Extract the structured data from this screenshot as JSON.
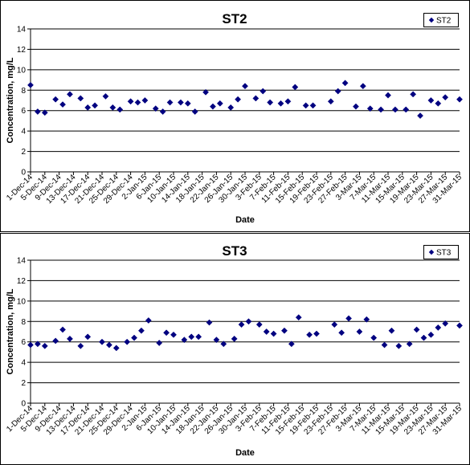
{
  "chart_data": [
    {
      "type": "scatter",
      "title": "ST2",
      "xlabel": "Date",
      "ylabel": "Concentration, mg/L",
      "ylim": [
        0,
        14
      ],
      "yticks": [
        0,
        2,
        4,
        6,
        8,
        10,
        12,
        14
      ],
      "xlim": [
        "2014-12-01",
        "2015-03-31"
      ],
      "xticks": [
        "1-Dec-14",
        "5-Dec-14",
        "9-Dec-14",
        "13-Dec-14",
        "17-Dec-14",
        "21-Dec-14",
        "25-Dec-14",
        "29-Dec-14",
        "2-Jan-15",
        "6-Jan-15",
        "10-Jan-15",
        "14-Jan-15",
        "18-Jan-15",
        "22-Jan-15",
        "26-Jan-15",
        "30-Jan-15",
        "3-Feb-15",
        "7-Feb-15",
        "11-Feb-15",
        "15-Feb-15",
        "19-Feb-15",
        "23-Feb-15",
        "27-Feb-15",
        "3-Mar-15",
        "7-Mar-15",
        "11-Mar-15",
        "15-Mar-15",
        "19-Mar-15",
        "23-Mar-15",
        "27-Mar-15",
        "31-Mar-15"
      ],
      "grid": "horizontal",
      "legend": "top-right",
      "series": [
        {
          "name": "ST2",
          "color": "#000080",
          "marker": "diamond",
          "points": [
            {
              "x": "2014-12-01",
              "y": 8.5
            },
            {
              "x": "2014-12-03",
              "y": 5.9
            },
            {
              "x": "2014-12-05",
              "y": 5.8
            },
            {
              "x": "2014-12-08",
              "y": 7.1
            },
            {
              "x": "2014-12-10",
              "y": 6.6
            },
            {
              "x": "2014-12-12",
              "y": 7.6
            },
            {
              "x": "2014-12-15",
              "y": 7.2
            },
            {
              "x": "2014-12-17",
              "y": 6.3
            },
            {
              "x": "2014-12-19",
              "y": 6.5
            },
            {
              "x": "2014-12-22",
              "y": 7.4
            },
            {
              "x": "2014-12-24",
              "y": 6.3
            },
            {
              "x": "2014-12-26",
              "y": 6.1
            },
            {
              "x": "2014-12-29",
              "y": 6.9
            },
            {
              "x": "2014-12-31",
              "y": 6.8
            },
            {
              "x": "2015-01-02",
              "y": 7.0
            },
            {
              "x": "2015-01-05",
              "y": 6.2
            },
            {
              "x": "2015-01-07",
              "y": 5.9
            },
            {
              "x": "2015-01-09",
              "y": 6.8
            },
            {
              "x": "2015-01-12",
              "y": 6.8
            },
            {
              "x": "2015-01-14",
              "y": 6.7
            },
            {
              "x": "2015-01-16",
              "y": 5.9
            },
            {
              "x": "2015-01-19",
              "y": 7.8
            },
            {
              "x": "2015-01-21",
              "y": 6.4
            },
            {
              "x": "2015-01-23",
              "y": 6.7
            },
            {
              "x": "2015-01-26",
              "y": 6.3
            },
            {
              "x": "2015-01-28",
              "y": 7.1
            },
            {
              "x": "2015-01-30",
              "y": 8.4
            },
            {
              "x": "2015-02-02",
              "y": 7.2
            },
            {
              "x": "2015-02-04",
              "y": 7.9
            },
            {
              "x": "2015-02-06",
              "y": 6.8
            },
            {
              "x": "2015-02-09",
              "y": 6.7
            },
            {
              "x": "2015-02-11",
              "y": 6.9
            },
            {
              "x": "2015-02-13",
              "y": 8.3
            },
            {
              "x": "2015-02-16",
              "y": 6.5
            },
            {
              "x": "2015-02-18",
              "y": 6.5
            },
            {
              "x": "2015-02-23",
              "y": 6.9
            },
            {
              "x": "2015-02-25",
              "y": 7.9
            },
            {
              "x": "2015-02-27",
              "y": 8.7
            },
            {
              "x": "2015-03-02",
              "y": 6.4
            },
            {
              "x": "2015-03-04",
              "y": 8.4
            },
            {
              "x": "2015-03-06",
              "y": 6.2
            },
            {
              "x": "2015-03-09",
              "y": 6.1
            },
            {
              "x": "2015-03-11",
              "y": 7.5
            },
            {
              "x": "2015-03-13",
              "y": 6.1
            },
            {
              "x": "2015-03-16",
              "y": 6.1
            },
            {
              "x": "2015-03-18",
              "y": 7.6
            },
            {
              "x": "2015-03-20",
              "y": 5.5
            },
            {
              "x": "2015-03-23",
              "y": 7.0
            },
            {
              "x": "2015-03-25",
              "y": 6.7
            },
            {
              "x": "2015-03-27",
              "y": 7.3
            },
            {
              "x": "2015-03-31",
              "y": 7.1
            }
          ]
        }
      ]
    },
    {
      "type": "scatter",
      "title": "ST3",
      "xlabel": "Date",
      "ylabel": "Concentration, mg/L",
      "ylim": [
        0,
        14
      ],
      "yticks": [
        0,
        2,
        4,
        6,
        8,
        10,
        12,
        14
      ],
      "xlim": [
        "2014-12-01",
        "2015-03-31"
      ],
      "xticks": [
        "1-Dec-14",
        "5-Dec-14",
        "9-Dec-14",
        "13-Dec-14",
        "17-Dec-14",
        "21-Dec-14",
        "25-Dec-14",
        "29-Dec-14",
        "2-Jan-15",
        "6-Jan-15",
        "10-Jan-15",
        "14-Jan-15",
        "18-Jan-15",
        "22-Jan-15",
        "26-Jan-15",
        "30-Jan-15",
        "3-Feb-15",
        "7-Feb-15",
        "11-Feb-15",
        "15-Feb-15",
        "19-Feb-15",
        "23-Feb-15",
        "27-Feb-15",
        "3-Mar-15",
        "7-Mar-15",
        "11-Mar-15",
        "15-Mar-15",
        "19-Mar-15",
        "23-Mar-15",
        "27-Mar-15",
        "31-Mar-15"
      ],
      "grid": "horizontal",
      "legend": "top-right",
      "series": [
        {
          "name": "ST3",
          "color": "#000080",
          "marker": "diamond",
          "points": [
            {
              "x": "2014-12-01",
              "y": 5.7
            },
            {
              "x": "2014-12-03",
              "y": 5.8
            },
            {
              "x": "2014-12-05",
              "y": 5.6
            },
            {
              "x": "2014-12-08",
              "y": 6.1
            },
            {
              "x": "2014-12-10",
              "y": 7.2
            },
            {
              "x": "2014-12-12",
              "y": 6.3
            },
            {
              "x": "2014-12-15",
              "y": 5.6
            },
            {
              "x": "2014-12-17",
              "y": 6.5
            },
            {
              "x": "2014-12-21",
              "y": 6.0
            },
            {
              "x": "2014-12-23",
              "y": 5.7
            },
            {
              "x": "2014-12-25",
              "y": 5.4
            },
            {
              "x": "2014-12-28",
              "y": 6.0
            },
            {
              "x": "2014-12-30",
              "y": 6.4
            },
            {
              "x": "2015-01-01",
              "y": 7.1
            },
            {
              "x": "2015-01-03",
              "y": 8.1
            },
            {
              "x": "2015-01-06",
              "y": 5.9
            },
            {
              "x": "2015-01-08",
              "y": 6.9
            },
            {
              "x": "2015-01-10",
              "y": 6.7
            },
            {
              "x": "2015-01-13",
              "y": 6.2
            },
            {
              "x": "2015-01-15",
              "y": 6.5
            },
            {
              "x": "2015-01-17",
              "y": 6.5
            },
            {
              "x": "2015-01-20",
              "y": 7.9
            },
            {
              "x": "2015-01-22",
              "y": 6.2
            },
            {
              "x": "2015-01-24",
              "y": 5.8
            },
            {
              "x": "2015-01-27",
              "y": 6.3
            },
            {
              "x": "2015-01-29",
              "y": 7.7
            },
            {
              "x": "2015-01-31",
              "y": 8.0
            },
            {
              "x": "2015-02-03",
              "y": 7.7
            },
            {
              "x": "2015-02-05",
              "y": 7.0
            },
            {
              "x": "2015-02-07",
              "y": 6.8
            },
            {
              "x": "2015-02-10",
              "y": 7.1
            },
            {
              "x": "2015-02-12",
              "y": 5.8
            },
            {
              "x": "2015-02-14",
              "y": 8.4
            },
            {
              "x": "2015-02-17",
              "y": 6.7
            },
            {
              "x": "2015-02-19",
              "y": 6.8
            },
            {
              "x": "2015-02-24",
              "y": 7.7
            },
            {
              "x": "2015-02-26",
              "y": 6.9
            },
            {
              "x": "2015-02-28",
              "y": 8.3
            },
            {
              "x": "2015-03-03",
              "y": 7.0
            },
            {
              "x": "2015-03-05",
              "y": 8.2
            },
            {
              "x": "2015-03-07",
              "y": 6.4
            },
            {
              "x": "2015-03-10",
              "y": 5.7
            },
            {
              "x": "2015-03-12",
              "y": 7.1
            },
            {
              "x": "2015-03-14",
              "y": 5.6
            },
            {
              "x": "2015-03-17",
              "y": 5.8
            },
            {
              "x": "2015-03-19",
              "y": 7.2
            },
            {
              "x": "2015-03-21",
              "y": 6.4
            },
            {
              "x": "2015-03-23",
              "y": 6.7
            },
            {
              "x": "2015-03-25",
              "y": 7.4
            },
            {
              "x": "2015-03-27",
              "y": 7.8
            },
            {
              "x": "2015-03-31",
              "y": 7.6
            }
          ]
        }
      ]
    }
  ]
}
